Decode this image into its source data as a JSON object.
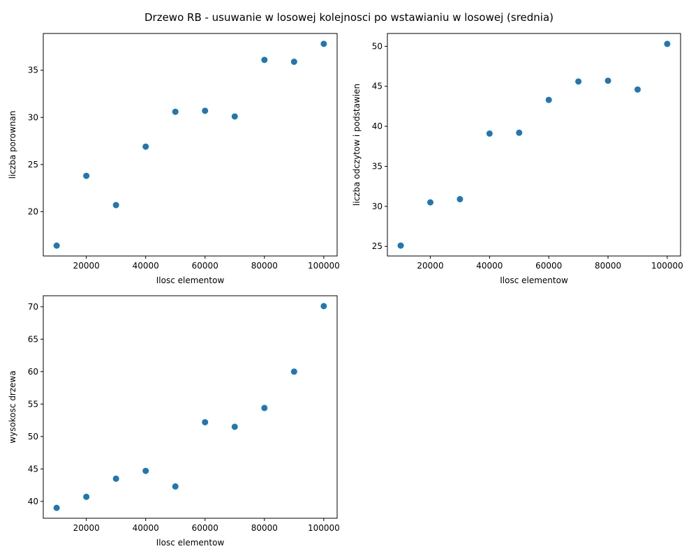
{
  "figure": {
    "title": "Drzewo RB - usuwanie w losowej kolejnosci po wstawianiu w losowej (srednia)"
  },
  "chart_data": [
    {
      "type": "scatter",
      "xlabel": "Ilosc elementow",
      "ylabel": "liczba porownan",
      "x": [
        10000,
        20000,
        30000,
        40000,
        50000,
        60000,
        70000,
        80000,
        90000,
        100000
      ],
      "y": [
        16.4,
        23.8,
        20.7,
        26.9,
        30.6,
        30.7,
        30.1,
        36.1,
        35.9,
        37.8
      ],
      "xlim": [
        5500,
        104500
      ],
      "ylim": [
        15.3,
        38.9
      ],
      "xticks": [
        20000,
        40000,
        60000,
        80000,
        100000
      ],
      "xtick_labels": [
        "20000",
        "40000",
        "60000",
        "80000",
        "100000"
      ],
      "yticks": [
        20,
        25,
        30,
        35
      ],
      "ytick_labels": [
        "20",
        "25",
        "30",
        "35"
      ],
      "color": "#1f77b4"
    },
    {
      "type": "scatter",
      "xlabel": "Ilosc elementow",
      "ylabel": "liczba odczytow i podstawien",
      "x": [
        10000,
        20000,
        30000,
        40000,
        50000,
        60000,
        70000,
        80000,
        90000,
        100000
      ],
      "y": [
        25.1,
        30.5,
        30.9,
        39.1,
        39.2,
        43.3,
        45.6,
        45.7,
        44.6,
        50.3
      ],
      "xlim": [
        5500,
        104500
      ],
      "ylim": [
        23.8,
        51.6
      ],
      "xticks": [
        20000,
        40000,
        60000,
        80000,
        100000
      ],
      "xtick_labels": [
        "20000",
        "40000",
        "60000",
        "80000",
        "100000"
      ],
      "yticks": [
        25,
        30,
        35,
        40,
        45,
        50
      ],
      "ytick_labels": [
        "25",
        "30",
        "35",
        "40",
        "45",
        "50"
      ],
      "color": "#1f77b4"
    },
    {
      "type": "scatter",
      "xlabel": "Ilosc elementow",
      "ylabel": "wysokosc drzewa",
      "x": [
        10000,
        20000,
        30000,
        40000,
        50000,
        60000,
        70000,
        80000,
        90000,
        100000
      ],
      "y": [
        39.0,
        40.7,
        43.5,
        44.7,
        42.3,
        52.2,
        51.5,
        54.4,
        60.0,
        70.1
      ],
      "xlim": [
        5500,
        104500
      ],
      "ylim": [
        37.4,
        71.7
      ],
      "xticks": [
        20000,
        40000,
        60000,
        80000,
        100000
      ],
      "xtick_labels": [
        "20000",
        "40000",
        "60000",
        "80000",
        "100000"
      ],
      "yticks": [
        40,
        45,
        50,
        55,
        60,
        65,
        70
      ],
      "ytick_labels": [
        "40",
        "45",
        "50",
        "55",
        "60",
        "65",
        "70"
      ],
      "color": "#1f77b4"
    }
  ]
}
